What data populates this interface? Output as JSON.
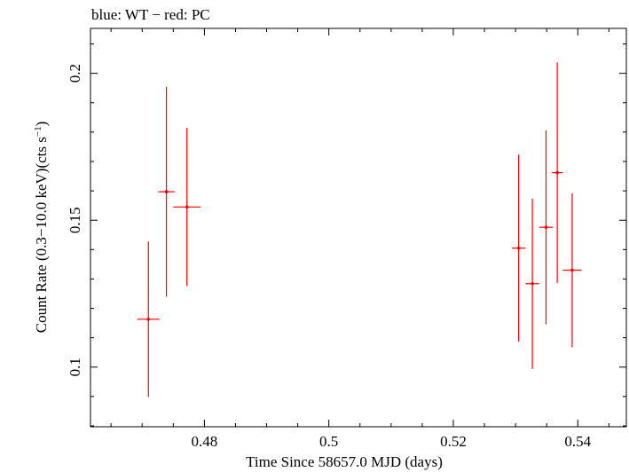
{
  "chart_data": {
    "type": "scatter",
    "title": "blue: WT − red: PC",
    "xlabel": "Time Since 58657.0 MJD (days)",
    "ylabel_main": "Count Rate (0.3−10.0 keV)(cts s",
    "ylabel_sup": "−1",
    "ylabel_end": ")",
    "xlim": [
      0.4617,
      0.5478
    ],
    "ylim": [
      0.0797,
      0.2153
    ],
    "xticks": [
      {
        "value": 0.48,
        "label": "0.48"
      },
      {
        "value": 0.5,
        "label": "0.5"
      },
      {
        "value": 0.52,
        "label": "0.52"
      },
      {
        "value": 0.54,
        "label": "0.54"
      }
    ],
    "yticks": [
      {
        "value": 0.1,
        "label": "0.1"
      },
      {
        "value": 0.15,
        "label": "0.15"
      },
      {
        "value": 0.2,
        "label": "0.2"
      }
    ],
    "x_minor_step": 0.005,
    "y_minor_step": 0.01,
    "series": [
      {
        "color": "#ff0000",
        "points": [
          {
            "x": 0.471,
            "xerr": 0.0018,
            "y": 0.1163,
            "yerr_lo": 0.0265,
            "yerr_hi": 0.0265
          },
          {
            "x": 0.4739,
            "xerr": 0.0013,
            "y": 0.1597,
            "yerr_lo": 0.0357,
            "yerr_hi": 0.0357
          },
          {
            "x": 0.4772,
            "xerr": 0.0022,
            "y": 0.1545,
            "yerr_lo": 0.0269,
            "yerr_hi": 0.0269
          },
          {
            "x": 0.5305,
            "xerr": 0.0011,
            "y": 0.1405,
            "yerr_lo": 0.0318,
            "yerr_hi": 0.0318
          },
          {
            "x": 0.5327,
            "xerr": 0.0011,
            "y": 0.1284,
            "yerr_lo": 0.029,
            "yerr_hi": 0.029
          },
          {
            "x": 0.5349,
            "xerr": 0.0011,
            "y": 0.1476,
            "yerr_lo": 0.033,
            "yerr_hi": 0.033
          },
          {
            "x": 0.5367,
            "xerr": 0.0009,
            "y": 0.1662,
            "yerr_lo": 0.0375,
            "yerr_hi": 0.0375
          },
          {
            "x": 0.5391,
            "xerr": 0.0015,
            "y": 0.133,
            "yerr_lo": 0.0262,
            "yerr_hi": 0.0262
          }
        ]
      }
    ]
  }
}
